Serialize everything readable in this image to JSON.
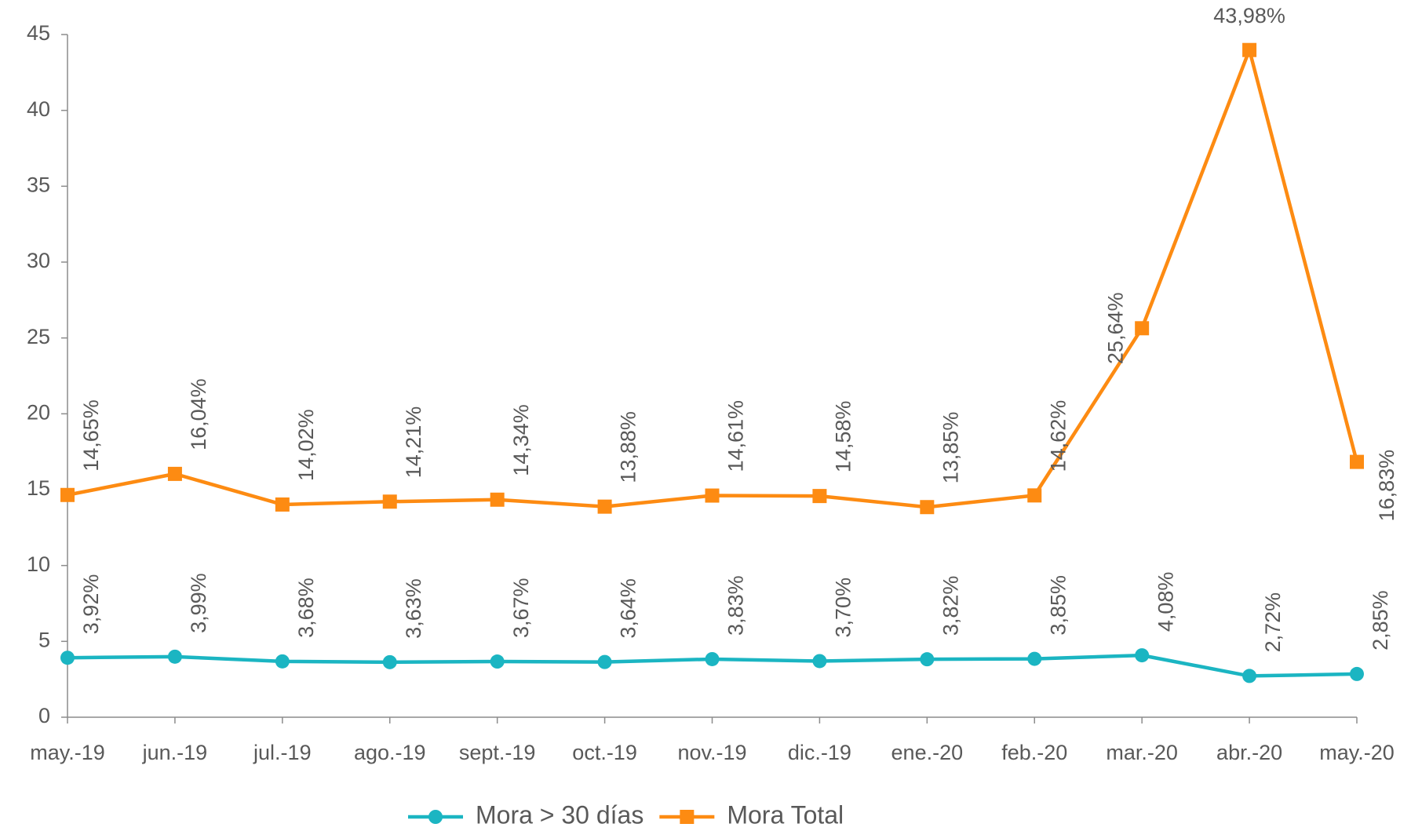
{
  "chart_data": {
    "type": "line",
    "categories": [
      "may.-19",
      "jun.-19",
      "jul.-19",
      "ago.-19",
      "sept.-19",
      "oct.-19",
      "nov.-19",
      "dic.-19",
      "ene.-20",
      "feb.-20",
      "mar.-20",
      "abr.-20",
      "may.-20"
    ],
    "series": [
      {
        "name": "Mora > 30 días",
        "color": "#1bb5c2",
        "marker": "circle",
        "values": [
          3.92,
          3.99,
          3.68,
          3.63,
          3.67,
          3.64,
          3.83,
          3.7,
          3.82,
          3.85,
          4.08,
          2.72,
          2.85
        ],
        "value_labels": [
          "3,92%",
          "3,99%",
          "3,68%",
          "3,63%",
          "3,67%",
          "3,64%",
          "3,83%",
          "3,70%",
          "3,82%",
          "3,85%",
          "4,08%",
          "2,72%",
          "2,85%"
        ]
      },
      {
        "name": "Mora Total",
        "color": "#fd8b12",
        "marker": "square",
        "values": [
          14.65,
          16.04,
          14.02,
          14.21,
          14.34,
          13.88,
          14.61,
          14.58,
          13.85,
          14.62,
          25.64,
          43.98,
          16.83
        ],
        "value_labels": [
          "14,65%",
          "16,04%",
          "14,02%",
          "14,21%",
          "14,34%",
          "13,88%",
          "14,61%",
          "14,58%",
          "13,85%",
          "14,62%",
          "25,64%",
          "43,98%",
          "16,83%"
        ]
      }
    ],
    "ylim": [
      0,
      45
    ],
    "yticks": [
      0,
      5,
      10,
      15,
      20,
      25,
      30,
      35,
      40,
      45
    ],
    "grid": false,
    "legend": "bottom"
  }
}
